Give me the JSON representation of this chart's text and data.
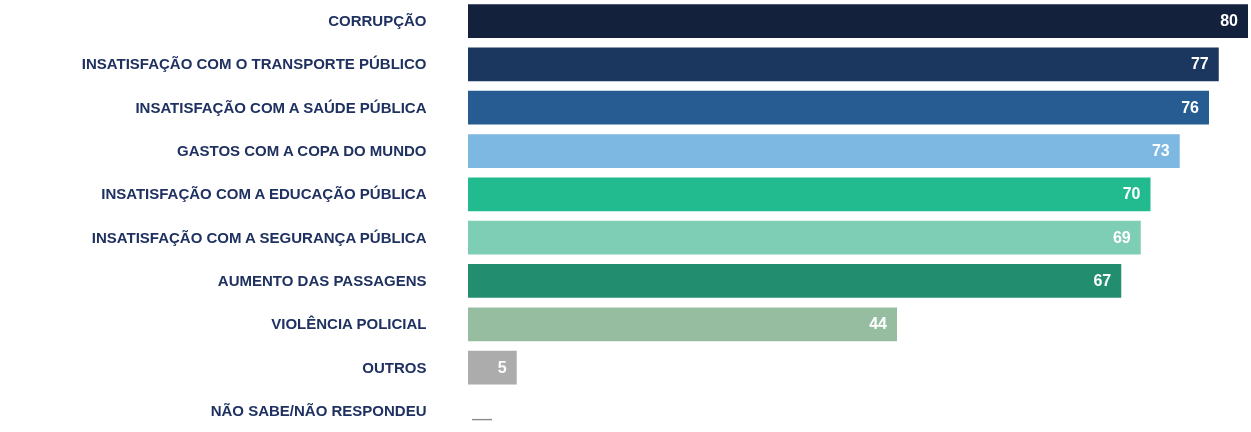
{
  "chart_data": {
    "type": "bar",
    "orientation": "horizontal",
    "xlim": [
      0,
      80
    ],
    "categories": [
      "CORRUPÇÃO",
      "INSATISFAÇÃO COM O TRANSPORTE PÚBLICO",
      "INSATISFAÇÃO COM A SAÚDE PÚBLICA",
      "GASTOS COM A COPA DO MUNDO",
      "INSATISFAÇÃO COM A EDUCAÇÃO PÚBLICA",
      "INSATISFAÇÃO COM A SEGURANÇA PÚBLICA",
      "AUMENTO DAS PASSAGENS",
      "VIOLÊNCIA POLICIAL",
      "OUTROS",
      "NÃO SABE/NÃO RESPONDEU"
    ],
    "values": [
      80,
      77,
      76,
      73,
      70,
      69,
      67,
      44,
      5,
      null
    ],
    "value_labels": [
      "80",
      "77",
      "76",
      "73",
      "70",
      "69",
      "67",
      "44",
      "5",
      "—"
    ],
    "colors": [
      "#14213d",
      "#1b365f",
      "#265c92",
      "#7db8e3",
      "#22bb8f",
      "#7ecdb5",
      "#228e6f",
      "#97bda0",
      "#acacac",
      "#8a8a8a"
    ]
  }
}
